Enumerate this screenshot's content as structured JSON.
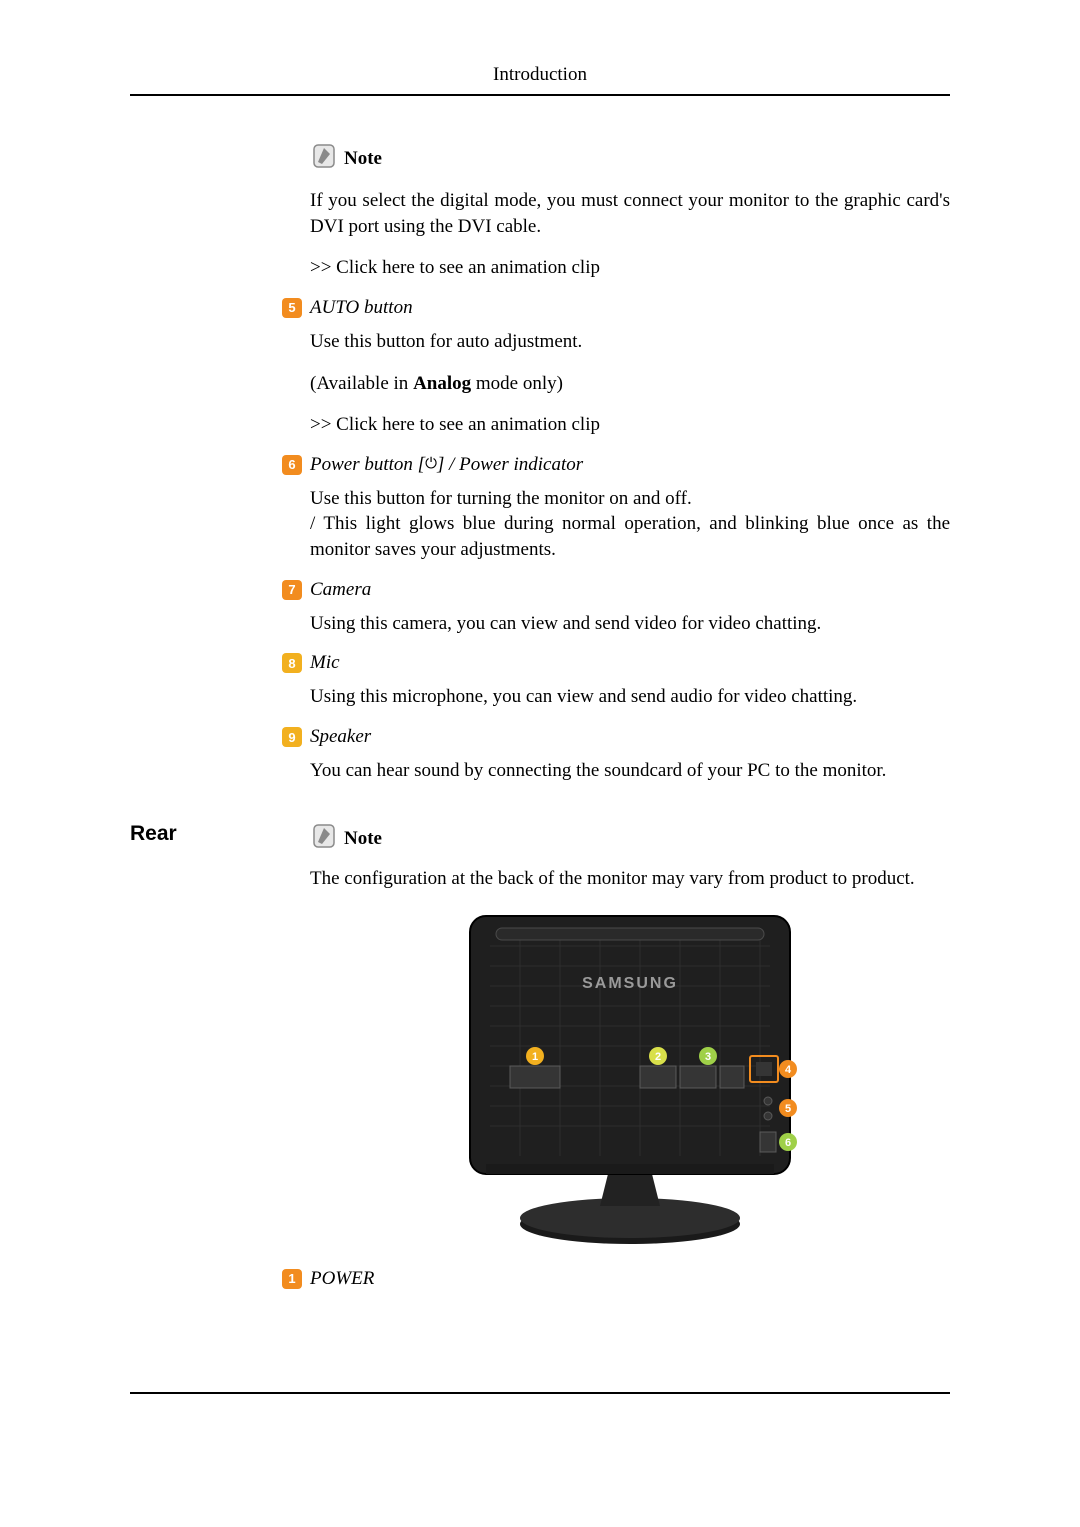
{
  "header": {
    "title": "Introduction"
  },
  "note": {
    "label": "Note"
  },
  "digital_text": "If you select the digital mode, you must connect your monitor to the graphic card's DVI port using the DVI cable.",
  "anim_link": ">> Click here to see an animation clip",
  "items": [
    {
      "num": "5",
      "color": "#f28c1f",
      "title": "AUTO button",
      "lines": [
        "Use this button for auto adjustment.",
        "(Available in <b>Analog</b> mode only)",
        ">> Click here to see an animation clip"
      ]
    },
    {
      "num": "6",
      "color": "#f28c1f",
      "title_prefix": "Power button [",
      "title_suffix": "] / Power indicator",
      "lines": [
        "Use this button for turning the monitor on and off.<br>/ This light glows blue during normal operation, and blinking blue once as the monitor saves your adjustments."
      ]
    },
    {
      "num": "7",
      "color": "#f28c1f",
      "title": "Camera",
      "lines": [
        "Using this camera, you can view and send video for video chatting."
      ]
    },
    {
      "num": "8",
      "color": "#f2b01f",
      "title": "Mic",
      "lines": [
        "Using this microphone, you can view and send audio for video chatting."
      ]
    },
    {
      "num": "9",
      "color": "#f2b01f",
      "title": "Speaker",
      "lines": [
        "You can hear sound by connecting the soundcard of your PC to the monitor."
      ]
    }
  ],
  "rear": {
    "heading": "Rear",
    "note_text": "The configuration at the back of the monitor may vary from product to product.",
    "power": {
      "num": "1",
      "color": "#f28c1f",
      "label": "POWER"
    },
    "monitor": {
      "brand": "SAMSUNG",
      "callouts": [
        {
          "n": "1",
          "color": "#f2b01f"
        },
        {
          "n": "2",
          "color": "#d9e04a"
        },
        {
          "n": "3",
          "color": "#9fd048"
        },
        {
          "n": "4",
          "color": "#f28c1f"
        },
        {
          "n": "5",
          "color": "#f28c1f"
        },
        {
          "n": "6",
          "color": "#9fd048"
        }
      ]
    }
  }
}
